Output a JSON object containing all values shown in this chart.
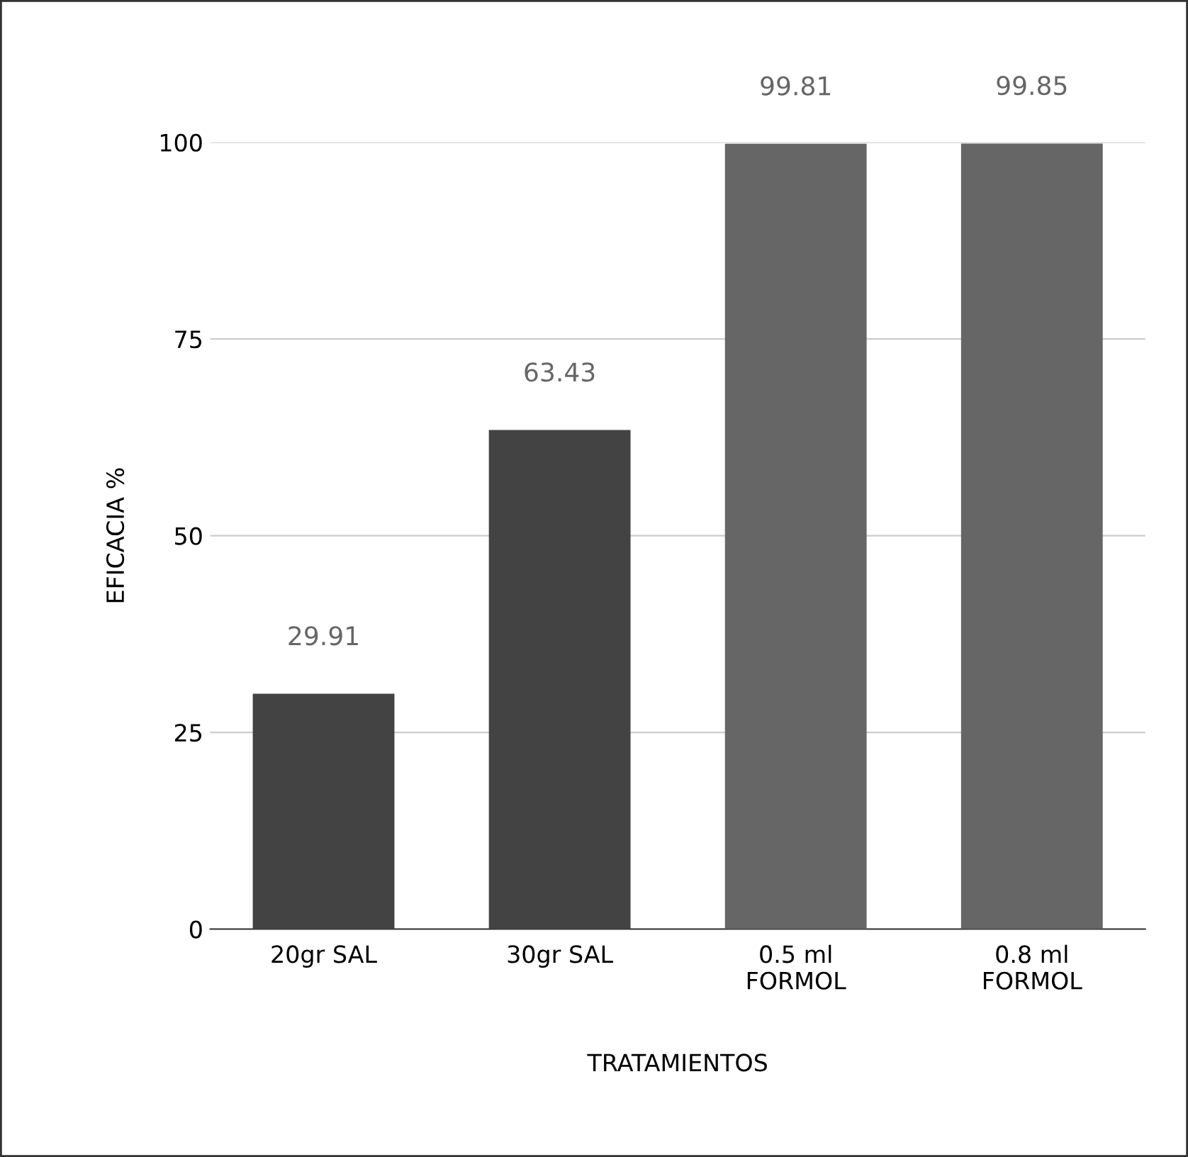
{
  "chart_data": {
    "type": "bar",
    "xlabel": "TRATAMIENTOS",
    "ylabel": "EFICACIA %",
    "categories": [
      "20gr SAL",
      "30gr SAL",
      "0.5 ml\nFORMOL",
      "0.8 ml\nFORMOL"
    ],
    "values": [
      29.91,
      63.43,
      99.81,
      99.85
    ],
    "colors": [
      "#434343",
      "#434343",
      "#666666",
      "#666666"
    ],
    "ylim": [
      0,
      100
    ],
    "yticks": [
      0,
      25,
      50,
      75,
      100
    ],
    "grid": "y",
    "data_labels": true,
    "legend": false
  }
}
